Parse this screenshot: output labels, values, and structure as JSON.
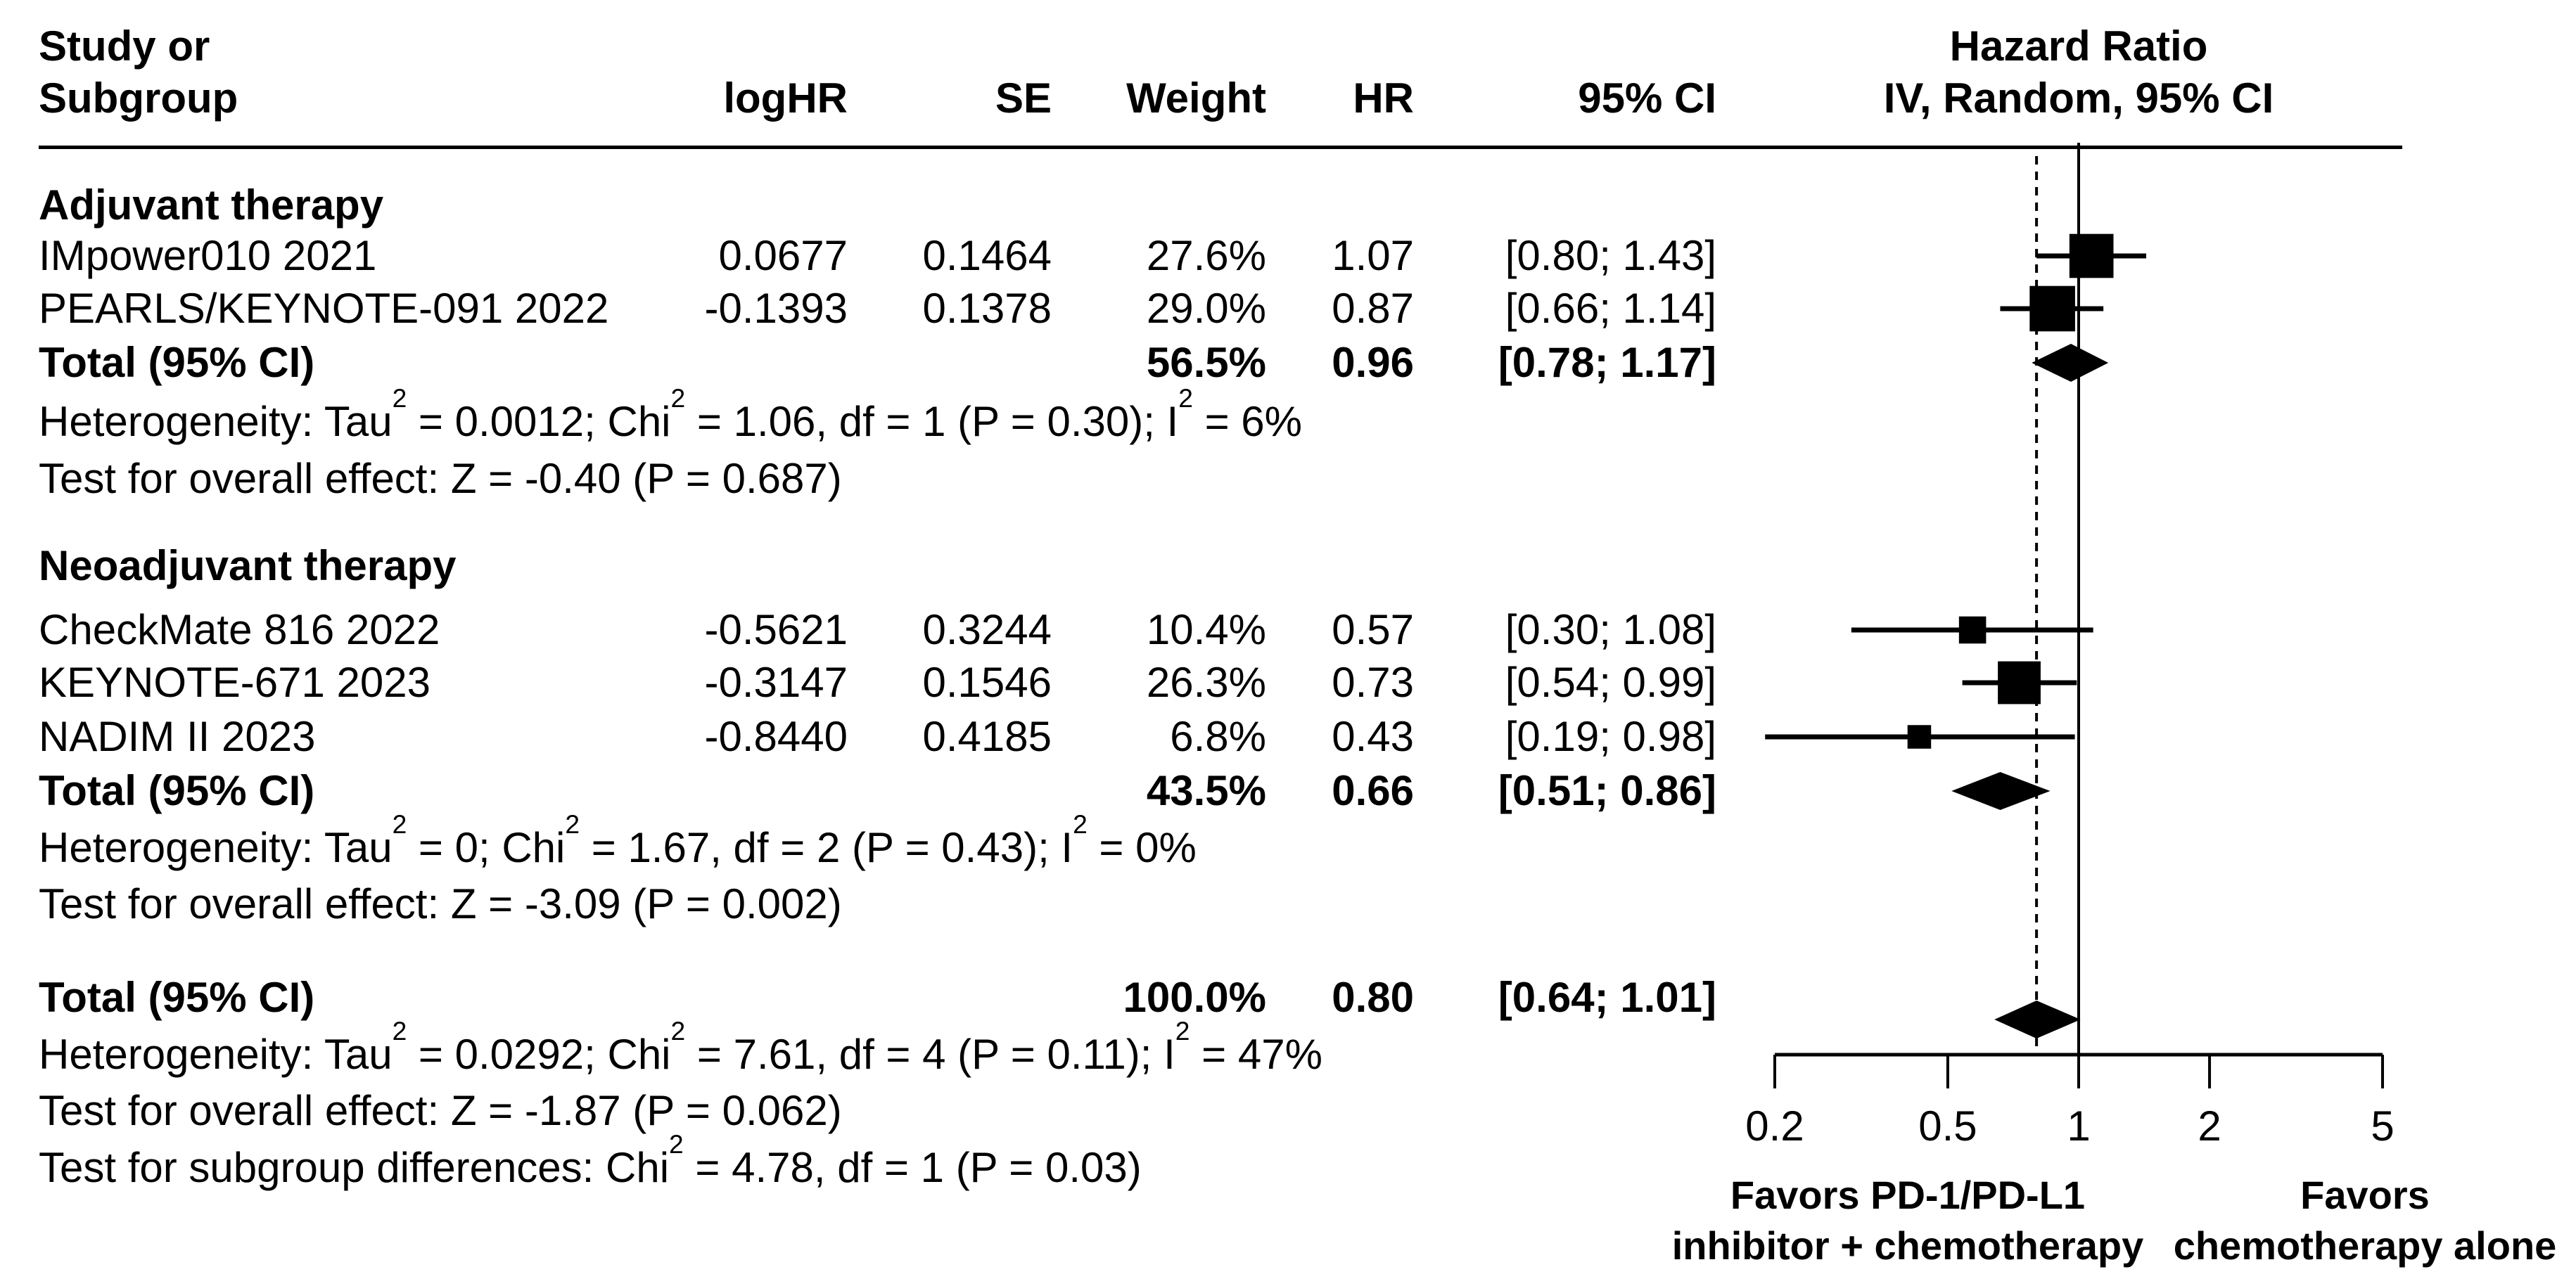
{
  "header": {
    "study_line1": "Study or",
    "study_line2": "Subgroup",
    "loghr": "logHR",
    "se": "SE",
    "weight": "Weight",
    "hr": "HR",
    "ci": "95% CI",
    "plot_line1": "Hazard Ratio",
    "plot_line2": "IV, Random, 95% CI"
  },
  "chart_data": {
    "type": "forest",
    "effect_measure": "Hazard Ratio",
    "model": "IV, Random, 95% CI",
    "x_scale": "log",
    "x_tick_labels": [
      "0.2",
      "0.5",
      "1",
      "2",
      "5"
    ],
    "x_tick_values": [
      0.2,
      0.5,
      1,
      2,
      5
    ],
    "x_min": 0.2,
    "x_max": 5,
    "reference_line_value": 1,
    "dashed_line_value": 0.8,
    "columns": [
      "logHR",
      "SE",
      "Weight",
      "HR",
      "95% CI"
    ],
    "groups": [
      {
        "label": "Adjuvant therapy",
        "studies": [
          {
            "name": "IMpower010 2021",
            "loghr": "0.0677",
            "se": "0.1464",
            "weight": "27.6%",
            "hr": "1.07",
            "ci": "[0.80; 1.43]",
            "hr_value": 1.07,
            "ci_low": 0.8,
            "ci_high": 1.43,
            "weight_value": 27.6
          },
          {
            "name": "PEARLS/KEYNOTE-091 2022",
            "loghr": "-0.1393",
            "se": "0.1378",
            "weight": "29.0%",
            "hr": "0.87",
            "ci": "[0.66; 1.14]",
            "hr_value": 0.87,
            "ci_low": 0.66,
            "ci_high": 1.14,
            "weight_value": 29.0
          }
        ],
        "total": {
          "label": "Total (95% CI)",
          "weight": "56.5%",
          "hr": "0.96",
          "ci": "[0.78; 1.17]",
          "hr_value": 0.96,
          "ci_low": 0.78,
          "ci_high": 1.17
        },
        "heterogeneity": "Heterogeneity: Tau² = 0.0012; Chi² = 1.06, df = 1 (P = 0.30); I² = 6%",
        "overall_effect_test": "Test for overall effect: Z = -0.40 (P = 0.687)"
      },
      {
        "label": "Neoadjuvant therapy",
        "studies": [
          {
            "name": "CheckMate 816 2022",
            "loghr": "-0.5621",
            "se": "0.3244",
            "weight": "10.4%",
            "hr": "0.57",
            "ci": "[0.30; 1.08]",
            "hr_value": 0.57,
            "ci_low": 0.3,
            "ci_high": 1.08,
            "weight_value": 10.4
          },
          {
            "name": "KEYNOTE-671 2023",
            "loghr": "-0.3147",
            "se": "0.1546",
            "weight": "26.3%",
            "hr": "0.73",
            "ci": "[0.54; 0.99]",
            "hr_value": 0.73,
            "ci_low": 0.54,
            "ci_high": 0.99,
            "weight_value": 26.3
          },
          {
            "name": "NADIM II 2023",
            "loghr": "-0.8440",
            "se": "0.4185",
            "weight": "6.8%",
            "hr": "0.43",
            "ci": "[0.19; 0.98]",
            "hr_value": 0.43,
            "ci_low": 0.19,
            "ci_high": 0.98,
            "weight_value": 6.8
          }
        ],
        "total": {
          "label": "Total (95% CI)",
          "weight": "43.5%",
          "hr": "0.66",
          "ci": "[0.51; 0.86]",
          "hr_value": 0.66,
          "ci_low": 0.51,
          "ci_high": 0.86
        },
        "heterogeneity": "Heterogeneity: Tau² = 0; Chi² = 1.67, df = 2 (P = 0.43); I² = 0%",
        "overall_effect_test": "Test for overall effect: Z = -3.09 (P = 0.002)"
      }
    ],
    "overall": {
      "label": "Total (95% CI)",
      "weight": "100.0%",
      "hr": "0.80",
      "ci": "[0.64; 1.01]",
      "hr_value": 0.8,
      "ci_low": 0.64,
      "ci_high": 1.01,
      "heterogeneity": "Heterogeneity: Tau² = 0.0292; Chi² = 7.61, df = 4 (P = 0.11); I² = 47%",
      "overall_effect_test": "Test for overall effect: Z = -1.87 (P = 0.062)",
      "subgroup_test": "Test for subgroup differences: Chi² = 4.78, df = 1 (P = 0.03)"
    }
  },
  "footer": {
    "favors_left_line1": "Favors PD-1/PD-L1",
    "favors_left_line2": "inhibitor + chemotherapy",
    "favors_right_line1": "Favors",
    "favors_right_line2": "chemotherapy alone"
  },
  "colors": {
    "foreground": "#000000",
    "background": "#ffffff"
  }
}
